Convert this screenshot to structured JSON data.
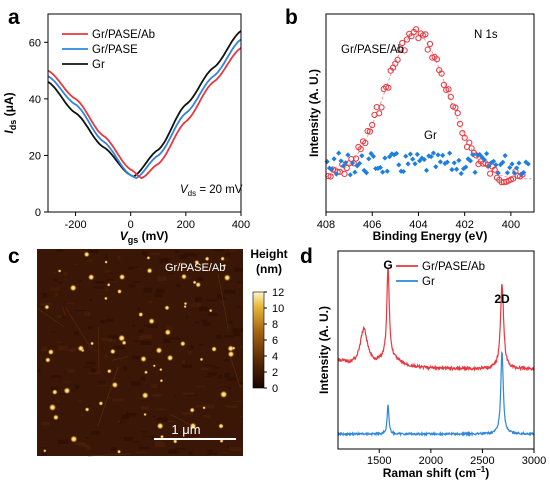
{
  "colors": {
    "red": "#e8373f",
    "blue": "#2e86de",
    "black": "#111111",
    "open_red": "#e8373f",
    "xps_blue": "#1e7fe0"
  },
  "chart_data": [
    {
      "id": "a",
      "panel_label": "a",
      "type": "line",
      "xlabel_main": "V",
      "xlabel_sub": "gs",
      "xlabel_unit": " (mV)",
      "ylabel_main": "I",
      "ylabel_sub": "ds",
      "ylabel_unit": " (μA)",
      "xlim": [
        -300,
        400
      ],
      "ylim": [
        0,
        70
      ],
      "xticks": [
        -200,
        0,
        200,
        400
      ],
      "yticks": [
        0,
        20,
        40,
        60
      ],
      "legend_position": "top-left",
      "annotation_main": "V",
      "annotation_sub": "ds",
      "annotation_rest": " = 20 mV",
      "series": [
        {
          "name": "Gr/PASE/Ab",
          "color": "#e8373f",
          "dirac_x": 40,
          "min_y": 12,
          "x": [
            -300,
            -200,
            -100,
            0,
            40,
            100,
            200,
            300,
            400
          ],
          "y": [
            50,
            40,
            27,
            15,
            12,
            17,
            32,
            46,
            58
          ]
        },
        {
          "name": "Gr/PASE",
          "color": "#2e86de",
          "dirac_x": 20,
          "min_y": 12,
          "x": [
            -300,
            -200,
            -100,
            0,
            20,
            100,
            200,
            300,
            400
          ],
          "y": [
            48,
            38,
            25,
            13,
            12,
            20,
            35,
            48,
            61
          ]
        },
        {
          "name": "Gr",
          "color": "#111111",
          "dirac_x": 10,
          "min_y": 12.5,
          "x": [
            -300,
            -200,
            -100,
            0,
            10,
            100,
            200,
            300,
            400
          ],
          "y": [
            46,
            35,
            23,
            13,
            12.5,
            22,
            38,
            51,
            64
          ]
        }
      ]
    },
    {
      "id": "b",
      "panel_label": "b",
      "type": "scatter",
      "title": "N 1s",
      "xlabel": "Binding Energy (eV)",
      "ylabel": "Intensity (A. U.)",
      "xlim": [
        408,
        399
      ],
      "xticks": [
        408,
        406,
        404,
        402,
        400
      ],
      "series": [
        {
          "name": "Gr/PASE/Ab",
          "marker": "open-circle",
          "color": "#e8373f",
          "peak_x": 404.1,
          "rel_peak": 1.0
        },
        {
          "name": "Gr",
          "marker": "filled-diamond",
          "color": "#1e7fe0",
          "rel_level": 0.18
        }
      ]
    },
    {
      "id": "c",
      "panel_label": "c",
      "type": "heatmap",
      "image_label": "Gr/PASE/Ab",
      "scalebar_label": "1 μm",
      "colorbar_title_1": "Height",
      "colorbar_title_2": "(nm)",
      "colorbar_range": [
        0,
        12
      ],
      "colorbar_ticks": [
        0,
        2,
        4,
        6,
        8,
        10,
        12
      ]
    },
    {
      "id": "d",
      "panel_label": "d",
      "type": "line",
      "xlabel_main": "Raman shift (cm",
      "xlabel_sup": "−1",
      "xlabel_end": ")",
      "ylabel": "Intensity (A. U.)",
      "xlim": [
        1100,
        3000
      ],
      "xticks": [
        1500,
        2000,
        2500,
        3000
      ],
      "peak_labels": [
        {
          "text": "G",
          "x": 1585
        },
        {
          "text": "2D",
          "x": 2690
        }
      ],
      "series": [
        {
          "name": "Gr/PASE/Ab",
          "color": "#e8373f",
          "peaks": [
            {
              "x": 1350,
              "h": 0.42
            },
            {
              "x": 1585,
              "h": 1.0
            },
            {
              "x": 2690,
              "h": 0.95
            }
          ]
        },
        {
          "name": "Gr",
          "color": "#2e86de",
          "peaks": [
            {
              "x": 1585,
              "h": 0.35
            },
            {
              "x": 2690,
              "h": 0.98
            }
          ]
        }
      ]
    }
  ]
}
